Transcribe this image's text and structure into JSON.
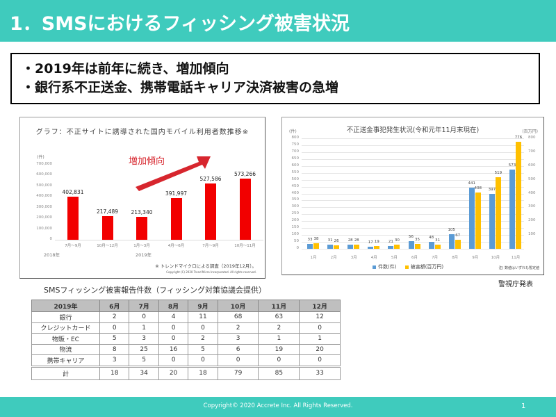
{
  "header": {
    "title": "1．SMSにおけるフィッシング被害状況",
    "color": "#3fcbbd"
  },
  "summary": {
    "lines": [
      "・2019年は前年に続き、増加傾向",
      "・銀行系不正送金、携帯電話キャリア決済被害の急増"
    ]
  },
  "left_chart": {
    "title": "グラフ：不正サイトに誘導された国内モバイル利用者数推移※",
    "yunit": "(件)",
    "yticks": [
      "700,000",
      "600,000",
      "500,000",
      "400,000",
      "300,000",
      "200,000",
      "100,000",
      "0"
    ],
    "categories": [
      "7月～9月",
      "10月～12月",
      "1月～3月",
      "4月～6月",
      "7月～9月",
      "10月～11月"
    ],
    "labels": [
      "402,831",
      "217,489",
      "213,340",
      "391,997",
      "527,586",
      "573,266"
    ],
    "years": [
      "2018年",
      "2019年"
    ],
    "annotation": "増加傾向",
    "source": "※ トレンドマイクロによる調査（2019年12月）。",
    "copyright": "Copyright (C) 2020 Trend Micro Incorporated. All rights reserved.",
    "bar_color": "#f20000"
  },
  "right_chart": {
    "title": "不正送金事犯発生状況(令和元年11月末現在)",
    "yunit_left": "(件)",
    "yunit_right": "(百万円)",
    "yticks_left": [
      "800",
      "750",
      "700",
      "650",
      "600",
      "550",
      "500",
      "450",
      "400",
      "350",
      "300",
      "250",
      "200",
      "150",
      "100",
      "50",
      "0"
    ],
    "yticks_right": [
      "800",
      "700",
      "600",
      "500",
      "400",
      "300",
      "200",
      "100"
    ],
    "months": [
      "1月",
      "2月",
      "3月",
      "4月",
      "5月",
      "6月",
      "7月",
      "8月",
      "9月",
      "10月",
      "11月"
    ],
    "counts": [
      "33",
      "31",
      "28",
      "17",
      "21",
      "56",
      "48",
      "105",
      "441",
      "397",
      "573"
    ],
    "amounts": [
      "38",
      "26",
      "28",
      "19",
      "30",
      "35",
      "31",
      "67",
      "408",
      "519",
      "776"
    ],
    "legend": {
      "count": "件数(件)",
      "amount": "被害額(百万円)"
    },
    "note": "注) 数値はいずれも暫定値",
    "colors": {
      "count": "#5b9bd5",
      "amount": "#ffc000"
    }
  },
  "announce": "警視庁発表",
  "table": {
    "title": "SMSフィッシング被害報告件数（フィッシング対策協議会提供）",
    "headers": [
      "2019年",
      "6月",
      "7月",
      "8月",
      "9月",
      "10月",
      "11月",
      "12月"
    ],
    "rows": [
      [
        "銀行",
        "2",
        "0",
        "4",
        "11",
        "68",
        "63",
        "12"
      ],
      [
        "クレジットカード",
        "0",
        "1",
        "0",
        "0",
        "2",
        "2",
        "0"
      ],
      [
        "物販・EC",
        "5",
        "3",
        "0",
        "2",
        "3",
        "1",
        "1"
      ],
      [
        "物流",
        "8",
        "25",
        "16",
        "5",
        "6",
        "19",
        "20"
      ],
      [
        "携帯キャリア",
        "3",
        "5",
        "0",
        "0",
        "0",
        "0",
        "0"
      ]
    ],
    "total": [
      "計",
      "18",
      "34",
      "20",
      "18",
      "79",
      "85",
      "33"
    ]
  },
  "footer": {
    "copyright": "Copyright© 2020 Accrete Inc. All Rights Reserved.",
    "page": "1"
  },
  "chart_data": [
    {
      "type": "bar",
      "title": "グラフ：不正サイトに誘導された国内モバイル利用者数推移※",
      "categories": [
        "2018年 7月～9月",
        "2018年 10月～12月",
        "2019年 1月～3月",
        "2019年 4月～6月",
        "2019年 7月～9月",
        "2019年 10月～11月"
      ],
      "values": [
        402831,
        217489,
        213340,
        391997,
        527586,
        573266
      ],
      "xlabel": "",
      "ylabel": "(件)",
      "ylim": [
        0,
        700000
      ],
      "annotations": [
        "増加傾向"
      ],
      "grid": false,
      "legend": "none"
    },
    {
      "type": "bar",
      "title": "不正送金事犯発生状況(令和元年11月末現在)",
      "categories": [
        "1月",
        "2月",
        "3月",
        "4月",
        "5月",
        "6月",
        "7月",
        "8月",
        "9月",
        "10月",
        "11月"
      ],
      "series": [
        {
          "name": "件数(件)",
          "axis": "left",
          "values": [
            33,
            31,
            28,
            17,
            21,
            56,
            48,
            105,
            441,
            397,
            573
          ]
        },
        {
          "name": "被害額(百万円)",
          "axis": "right",
          "values": [
            38,
            26,
            28,
            19,
            30,
            35,
            31,
            67,
            408,
            519,
            776
          ]
        }
      ],
      "ylabel": "(件)",
      "ylabel_right": "(百万円)",
      "ylim": [
        0,
        800
      ],
      "ylim_right": [
        0,
        800
      ],
      "grid": true,
      "legend": "bottom"
    },
    {
      "type": "table",
      "title": "SMSフィッシング被害報告件数（フィッシング対策協議会提供）",
      "columns": [
        "2019年",
        "6月",
        "7月",
        "8月",
        "9月",
        "10月",
        "11月",
        "12月"
      ],
      "rows": [
        [
          "銀行",
          2,
          0,
          4,
          11,
          68,
          63,
          12
        ],
        [
          "クレジットカード",
          0,
          1,
          0,
          0,
          2,
          2,
          0
        ],
        [
          "物販・EC",
          5,
          3,
          0,
          2,
          3,
          1,
          1
        ],
        [
          "物流",
          8,
          25,
          16,
          5,
          6,
          19,
          20
        ],
        [
          "携帯キャリア",
          3,
          5,
          0,
          0,
          0,
          0,
          0
        ],
        [
          "計",
          18,
          34,
          20,
          18,
          79,
          85,
          33
        ]
      ]
    }
  ]
}
